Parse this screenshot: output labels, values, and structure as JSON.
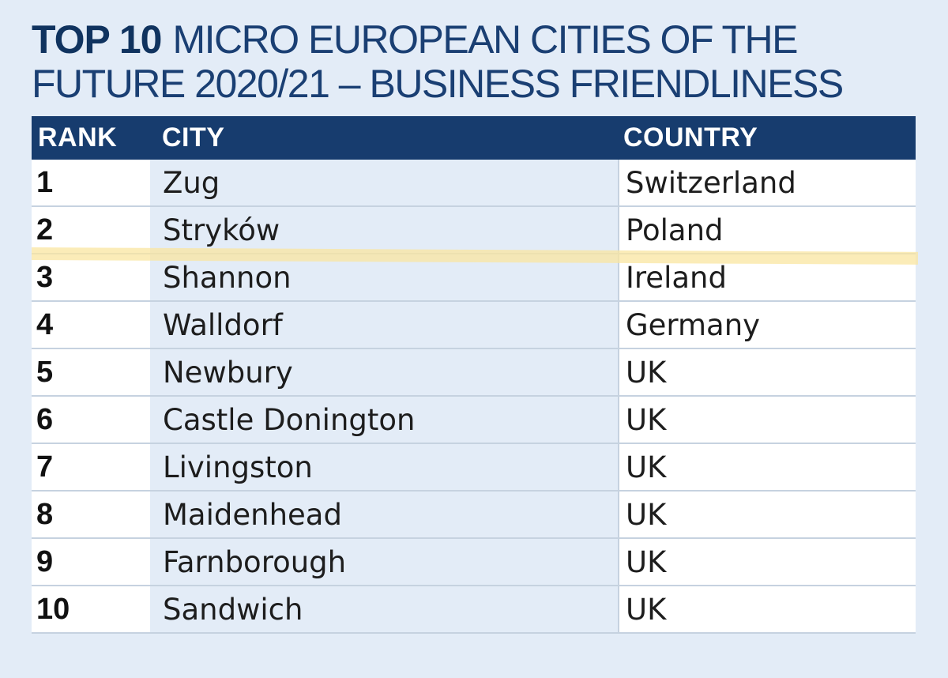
{
  "title": {
    "strong": "TOP 10",
    "rest": "MICRO EUROPEAN CITIES OF THE FUTURE 2020/21 – BUSINESS FRIENDLINESS"
  },
  "table": {
    "headers": {
      "rank": "RANK",
      "city": "CITY",
      "country": "COUNTRY"
    },
    "rows": [
      {
        "rank": "1",
        "city": "Zug",
        "country": "Switzerland"
      },
      {
        "rank": "2",
        "city": "Stryków",
        "country": "Poland"
      },
      {
        "rank": "3",
        "city": "Shannon",
        "country": "Ireland"
      },
      {
        "rank": "4",
        "city": "Walldorf",
        "country": "Germany"
      },
      {
        "rank": "5",
        "city": "Newbury",
        "country": "UK"
      },
      {
        "rank": "6",
        "city": "Castle Donington",
        "country": "UK"
      },
      {
        "rank": "7",
        "city": "Livingston",
        "country": "UK"
      },
      {
        "rank": "8",
        "city": "Maidenhead",
        "country": "UK"
      },
      {
        "rank": "9",
        "city": "Farnborough",
        "country": "UK"
      },
      {
        "rank": "10",
        "city": "Sandwich",
        "country": "UK"
      }
    ]
  },
  "colors": {
    "header_bg": "#173c6e",
    "title": "#1a3f73",
    "page_bg": "#e3ecf7",
    "highlight": "#fae6a0"
  }
}
